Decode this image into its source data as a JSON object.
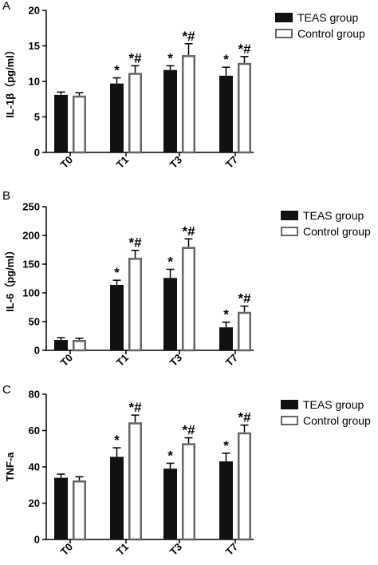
{
  "chart_data": [
    {
      "panel_label": "A",
      "type": "bar",
      "ylabel": "IL-1β（pg/ml）",
      "ylim": [
        0,
        20
      ],
      "yticks": [
        0,
        5,
        10,
        15,
        20
      ],
      "categories": [
        "T0",
        "T1",
        "T3",
        "T7"
      ],
      "series": [
        {
          "name": "TEAS group",
          "values": [
            8.1,
            9.7,
            11.6,
            10.8
          ],
          "errors": [
            0.4,
            0.8,
            0.6,
            1.2
          ],
          "marks": [
            "",
            "*",
            "*",
            "*"
          ]
        },
        {
          "name": "Control group",
          "values": [
            8.0,
            11.2,
            13.7,
            12.6
          ],
          "errors": [
            0.4,
            1.0,
            1.6,
            0.9
          ],
          "marks": [
            "",
            "*#",
            "*#",
            "*#"
          ]
        }
      ]
    },
    {
      "panel_label": "B",
      "type": "bar",
      "ylabel": "IL-6（pg/ml）",
      "ylim": [
        0,
        250
      ],
      "yticks": [
        0,
        50,
        100,
        150,
        200,
        250
      ],
      "categories": [
        "T0",
        "T1",
        "T3",
        "T7"
      ],
      "series": [
        {
          "name": "TEAS group",
          "values": [
            18,
            114,
            126,
            40
          ],
          "errors": [
            4,
            8,
            15,
            9
          ],
          "marks": [
            "",
            "*",
            "*",
            "*"
          ]
        },
        {
          "name": "Control group",
          "values": [
            18,
            161,
            180,
            67
          ],
          "errors": [
            3,
            13,
            14,
            10
          ],
          "marks": [
            "",
            "*#",
            "*#",
            "*#"
          ]
        }
      ]
    },
    {
      "panel_label": "C",
      "type": "bar",
      "ylabel": "TNF-a",
      "ylim": [
        0,
        80
      ],
      "yticks": [
        0,
        20,
        40,
        60,
        80
      ],
      "categories": [
        "T0",
        "T1",
        "T3",
        "T7"
      ],
      "series": [
        {
          "name": "TEAS group",
          "values": [
            34,
            45.5,
            39,
            43
          ],
          "errors": [
            2,
            5,
            3,
            4.5
          ],
          "marks": [
            "",
            "*",
            "*",
            "*"
          ]
        },
        {
          "name": "Control group",
          "values": [
            32.5,
            64.5,
            53,
            59
          ],
          "errors": [
            2,
            4,
            3,
            4
          ],
          "marks": [
            "",
            "*#",
            "*#",
            "*#"
          ]
        }
      ]
    }
  ]
}
